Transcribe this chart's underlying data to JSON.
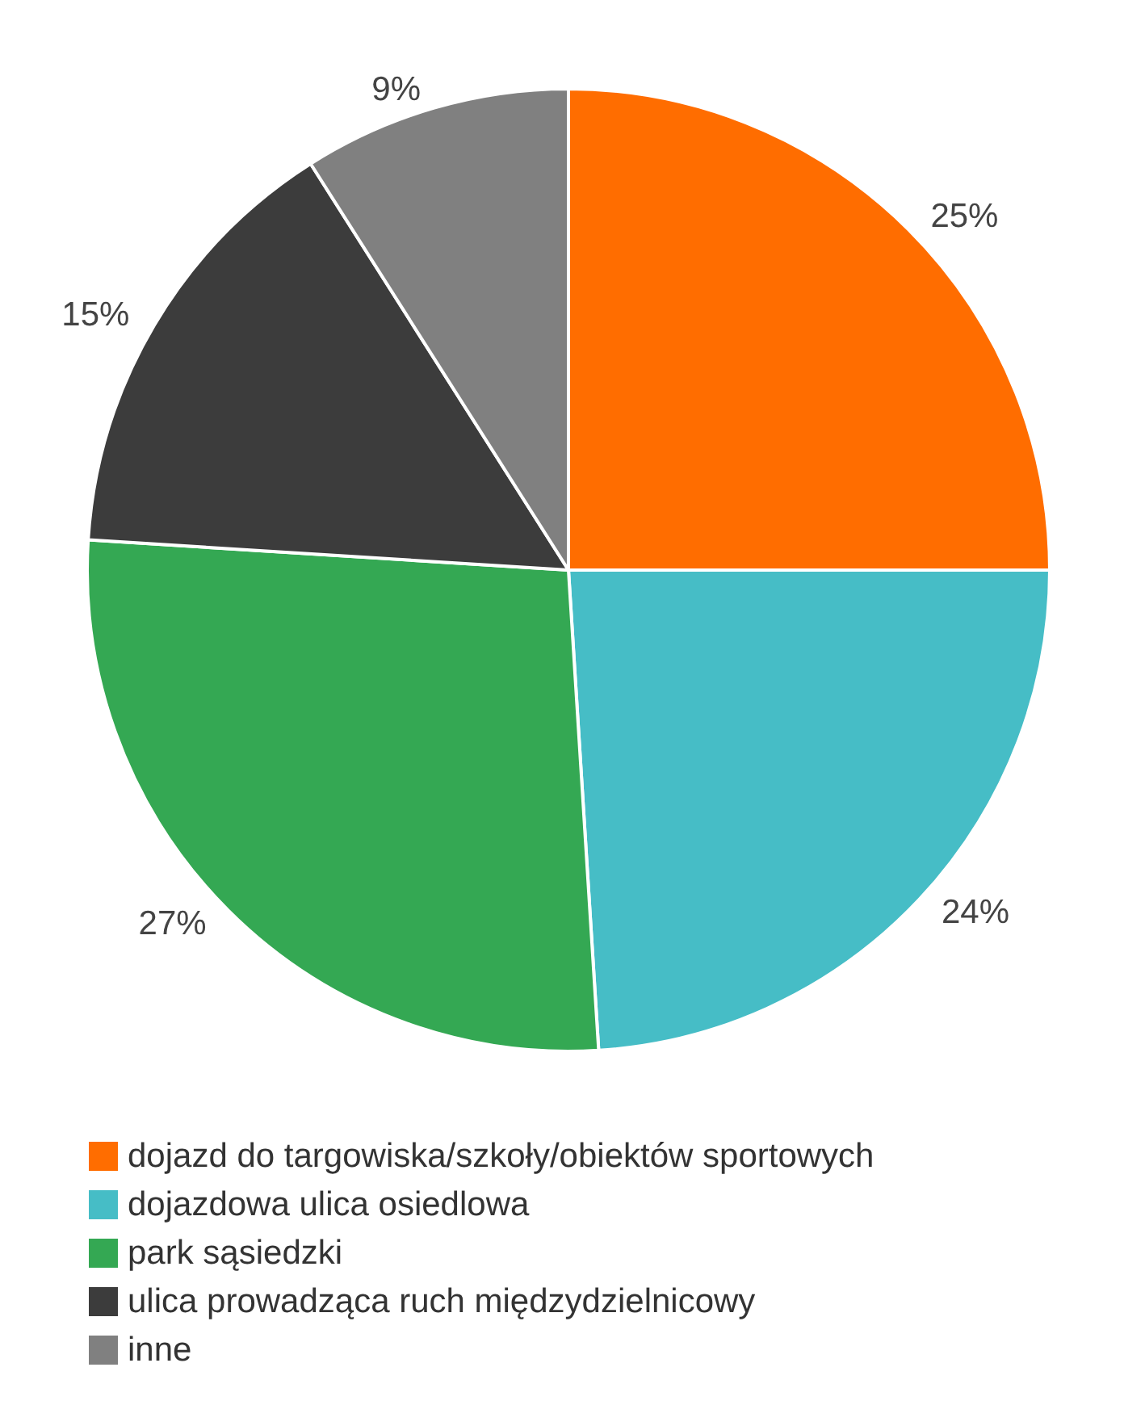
{
  "chart_data": {
    "type": "pie",
    "categories": [
      "dojazd do targowiska/szkoły/obiektów sportowych",
      "dojazdowa ulica osiedlowa",
      "park sąsiedzki",
      "ulica prowadząca ruch międzydzielnicowy",
      "inne"
    ],
    "values": [
      25,
      24,
      27,
      15,
      9
    ],
    "value_labels": [
      "25%",
      "24%",
      "27%",
      "15%",
      "9%"
    ],
    "colors": [
      "#ff6d00",
      "#46bdc6",
      "#34a853",
      "#3c3c3c",
      "#808080"
    ],
    "legend": "bottom left"
  }
}
